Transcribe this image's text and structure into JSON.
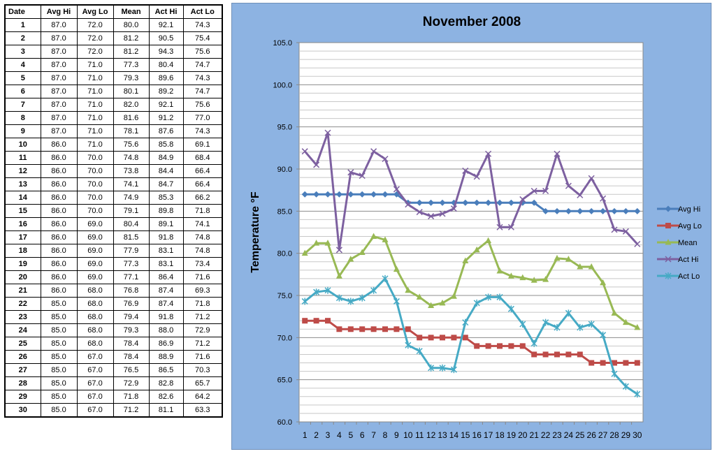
{
  "table": {
    "headers": [
      "Date",
      "Avg Hi",
      "Avg Lo",
      "Mean",
      "Act Hi",
      "Act Lo"
    ],
    "rows": [
      [
        "1",
        "87.0",
        "72.0",
        "80.0",
        "92.1",
        "74.3"
      ],
      [
        "2",
        "87.0",
        "72.0",
        "81.2",
        "90.5",
        "75.4"
      ],
      [
        "3",
        "87.0",
        "72.0",
        "81.2",
        "94.3",
        "75.6"
      ],
      [
        "4",
        "87.0",
        "71.0",
        "77.3",
        "80.4",
        "74.7"
      ],
      [
        "5",
        "87.0",
        "71.0",
        "79.3",
        "89.6",
        "74.3"
      ],
      [
        "6",
        "87.0",
        "71.0",
        "80.1",
        "89.2",
        "74.7"
      ],
      [
        "7",
        "87.0",
        "71.0",
        "82.0",
        "92.1",
        "75.6"
      ],
      [
        "8",
        "87.0",
        "71.0",
        "81.6",
        "91.2",
        "77.0"
      ],
      [
        "9",
        "87.0",
        "71.0",
        "78.1",
        "87.6",
        "74.3"
      ],
      [
        "10",
        "86.0",
        "71.0",
        "75.6",
        "85.8",
        "69.1"
      ],
      [
        "11",
        "86.0",
        "70.0",
        "74.8",
        "84.9",
        "68.4"
      ],
      [
        "12",
        "86.0",
        "70.0",
        "73.8",
        "84.4",
        "66.4"
      ],
      [
        "13",
        "86.0",
        "70.0",
        "74.1",
        "84.7",
        "66.4"
      ],
      [
        "14",
        "86.0",
        "70.0",
        "74.9",
        "85.3",
        "66.2"
      ],
      [
        "15",
        "86.0",
        "70.0",
        "79.1",
        "89.8",
        "71.8"
      ],
      [
        "16",
        "86.0",
        "69.0",
        "80.4",
        "89.1",
        "74.1"
      ],
      [
        "17",
        "86.0",
        "69.0",
        "81.5",
        "91.8",
        "74.8"
      ],
      [
        "18",
        "86.0",
        "69.0",
        "77.9",
        "83.1",
        "74.8"
      ],
      [
        "19",
        "86.0",
        "69.0",
        "77.3",
        "83.1",
        "73.4"
      ],
      [
        "20",
        "86.0",
        "69.0",
        "77.1",
        "86.4",
        "71.6"
      ],
      [
        "21",
        "86.0",
        "68.0",
        "76.8",
        "87.4",
        "69.3"
      ],
      [
        "22",
        "85.0",
        "68.0",
        "76.9",
        "87.4",
        "71.8"
      ],
      [
        "23",
        "85.0",
        "68.0",
        "79.4",
        "91.8",
        "71.2"
      ],
      [
        "24",
        "85.0",
        "68.0",
        "79.3",
        "88.0",
        "72.9"
      ],
      [
        "25",
        "85.0",
        "68.0",
        "78.4",
        "86.9",
        "71.2"
      ],
      [
        "26",
        "85.0",
        "67.0",
        "78.4",
        "88.9",
        "71.6"
      ],
      [
        "27",
        "85.0",
        "67.0",
        "76.5",
        "86.5",
        "70.3"
      ],
      [
        "28",
        "85.0",
        "67.0",
        "72.9",
        "82.8",
        "65.7"
      ],
      [
        "29",
        "85.0",
        "67.0",
        "71.8",
        "82.6",
        "64.2"
      ],
      [
        "30",
        "85.0",
        "67.0",
        "71.2",
        "81.1",
        "63.3"
      ]
    ]
  },
  "chart_data": {
    "type": "line",
    "title": "November 2008",
    "xlabel": "",
    "ylabel": "Temperature °F",
    "ylim": [
      60,
      105
    ],
    "y_ticks": [
      "60.0",
      "65.0",
      "70.0",
      "75.0",
      "80.0",
      "85.0",
      "90.0",
      "95.0",
      "100.0",
      "105.0"
    ],
    "x": [
      1,
      2,
      3,
      4,
      5,
      6,
      7,
      8,
      9,
      10,
      11,
      12,
      13,
      14,
      15,
      16,
      17,
      18,
      19,
      20,
      21,
      22,
      23,
      24,
      25,
      26,
      27,
      28,
      29,
      30
    ],
    "grid": "horizontal",
    "legend_position": "right",
    "series": [
      {
        "name": "Avg Hi",
        "color": "#4a7ebb",
        "marker": "diamond",
        "values": [
          87,
          87,
          87,
          87,
          87,
          87,
          87,
          87,
          87,
          86,
          86,
          86,
          86,
          86,
          86,
          86,
          86,
          86,
          86,
          86,
          86,
          85,
          85,
          85,
          85,
          85,
          85,
          85,
          85,
          85
        ]
      },
      {
        "name": "Avg Lo",
        "color": "#be4b48",
        "marker": "square",
        "values": [
          72,
          72,
          72,
          71,
          71,
          71,
          71,
          71,
          71,
          71,
          70,
          70,
          70,
          70,
          70,
          69,
          69,
          69,
          69,
          69,
          68,
          68,
          68,
          68,
          68,
          67,
          67,
          67,
          67,
          67
        ]
      },
      {
        "name": "Mean",
        "color": "#98b954",
        "marker": "triangle",
        "values": [
          80.0,
          81.2,
          81.2,
          77.3,
          79.3,
          80.1,
          82.0,
          81.6,
          78.1,
          75.6,
          74.8,
          73.8,
          74.1,
          74.9,
          79.1,
          80.4,
          81.5,
          77.9,
          77.3,
          77.1,
          76.8,
          76.9,
          79.4,
          79.3,
          78.4,
          78.4,
          76.5,
          72.9,
          71.8,
          71.2
        ]
      },
      {
        "name": "Act Hi",
        "color": "#7d60a0",
        "marker": "x",
        "values": [
          92.1,
          90.5,
          94.3,
          80.4,
          89.6,
          89.2,
          92.1,
          91.2,
          87.6,
          85.8,
          84.9,
          84.4,
          84.7,
          85.3,
          89.8,
          89.1,
          91.8,
          83.1,
          83.1,
          86.4,
          87.4,
          87.4,
          91.8,
          88.0,
          86.9,
          88.9,
          86.5,
          82.8,
          82.6,
          81.1
        ]
      },
      {
        "name": "Act Lo",
        "color": "#46aac5",
        "marker": "star",
        "values": [
          74.3,
          75.4,
          75.6,
          74.7,
          74.3,
          74.7,
          75.6,
          77.0,
          74.3,
          69.1,
          68.4,
          66.4,
          66.4,
          66.2,
          71.8,
          74.1,
          74.8,
          74.8,
          73.4,
          71.6,
          69.3,
          71.8,
          71.2,
          72.9,
          71.2,
          71.6,
          70.3,
          65.7,
          64.2,
          63.3
        ]
      }
    ]
  }
}
